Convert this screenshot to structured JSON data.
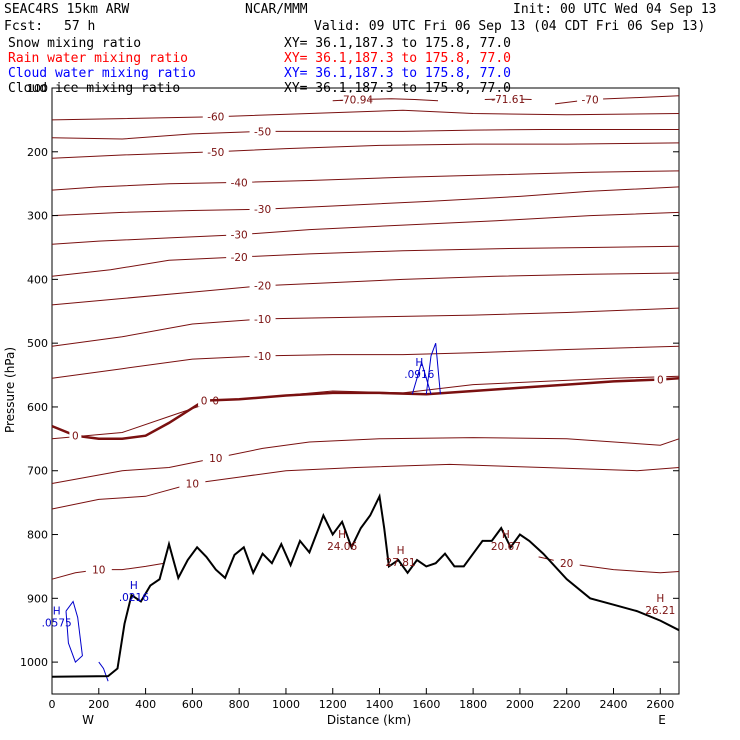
{
  "header": {
    "model": "SEAC4RS 15km ARW",
    "org": "NCAR/MMM",
    "init": "Init: 00 UTC Wed 04 Sep 13",
    "fcst_label": "Fcst:",
    "fcst_value": "57 h",
    "valid": "Valid: 09 UTC Fri 06 Sep 13 (04 CDT Fri 06 Sep 13)"
  },
  "legend": [
    {
      "label": "Snow mixing ratio",
      "xy": "XY=  36.1,187.3 to 175.8, 77.0",
      "color": "#000000"
    },
    {
      "label": "Rain water mixing ratio",
      "xy": "XY=  36.1,187.3 to 175.8, 77.0",
      "color": "#ff0000"
    },
    {
      "label": "Cloud water mixing ratio",
      "xy": "XY=  36.1,187.3 to 175.8, 77.0",
      "color": "#0000ff"
    },
    {
      "label": "Cloud ice mixing ratio",
      "xy": "XY=  36.1,187.3 to 175.8, 77.0",
      "color": "#000000"
    }
  ],
  "colors": {
    "isotherm": "#7a1010",
    "freezing": "#7a1010",
    "cloud_water": "#0000cc",
    "terrain": "#000000"
  },
  "chart_data": {
    "type": "line",
    "xlabel": "Distance (km)",
    "ylabel": "Pressure (hPa)",
    "xlim": [
      0,
      2680
    ],
    "ylim": [
      1050,
      100
    ],
    "xticks": [
      0,
      200,
      400,
      600,
      800,
      1000,
      1200,
      1400,
      1600,
      1800,
      2000,
      2200,
      2400,
      2600
    ],
    "yticks": [
      100,
      200,
      300,
      400,
      500,
      600,
      700,
      800,
      900,
      1000
    ],
    "xticklabels": [
      "0",
      "200",
      "400",
      "600",
      "800",
      "1000",
      "1200",
      "1400",
      "1600",
      "1800",
      "2000",
      "2200",
      "2400",
      "2600"
    ],
    "yticklabels": [
      "100",
      "200",
      "300",
      "400",
      "500",
      "600",
      "700",
      "800",
      "900",
      "1000"
    ],
    "endpoints": {
      "left": "W",
      "right": "E"
    },
    "terrain": {
      "x": [
        0,
        240,
        280,
        310,
        340,
        380,
        420,
        460,
        500,
        540,
        580,
        620,
        660,
        700,
        740,
        780,
        820,
        860,
        900,
        940,
        980,
        1020,
        1060,
        1100,
        1140,
        1160,
        1200,
        1240,
        1280,
        1320,
        1360,
        1400,
        1420,
        1440,
        1480,
        1520,
        1560,
        1600,
        1640,
        1680,
        1720,
        1760,
        1800,
        1840,
        1880,
        1920,
        1960,
        2000,
        2040,
        2100,
        2200,
        2300,
        2400,
        2500,
        2600,
        2680
      ],
      "p": [
        1023,
        1022,
        1010,
        940,
        895,
        905,
        880,
        870,
        815,
        868,
        840,
        820,
        835,
        855,
        868,
        832,
        820,
        860,
        830,
        845,
        815,
        848,
        810,
        828,
        790,
        770,
        800,
        780,
        820,
        790,
        770,
        740,
        790,
        850,
        840,
        860,
        840,
        850,
        845,
        830,
        850,
        850,
        830,
        810,
        810,
        790,
        820,
        800,
        810,
        830,
        870,
        900,
        910,
        920,
        935,
        950
      ]
    },
    "isotherms": [
      {
        "label": "-60",
        "x": [
          0,
          300,
          700,
          1100,
          1500,
          1800,
          2200,
          2680
        ],
        "p": [
          150,
          148,
          145,
          140,
          135,
          140,
          142,
          140
        ]
      },
      {
        "label": "-70.94",
        "x": [
          1200,
          1300,
          1450,
          1550,
          1650
        ],
        "p": [
          120,
          118,
          117,
          118,
          120
        ]
      },
      {
        "label": "-71.61",
        "x": [
          1850,
          1950,
          2050
        ],
        "p": [
          118,
          117,
          118
        ]
      },
      {
        "label": "-70",
        "x": [
          2150,
          2300,
          2500,
          2680
        ],
        "p": [
          125,
          118,
          115,
          112
        ]
      },
      {
        "label": "-50",
        "x": [
          0,
          300,
          600,
          900,
          1200,
          1500,
          1800,
          2100,
          2400,
          2680
        ],
        "p": [
          178,
          180,
          172,
          168,
          168,
          168,
          166,
          165,
          165,
          165
        ]
      },
      {
        "label": "-50",
        "x": [
          0,
          300,
          700,
          1000,
          1400,
          1800,
          2200,
          2680
        ],
        "p": [
          210,
          205,
          200,
          195,
          190,
          188,
          188,
          186
        ]
      },
      {
        "label": "-40",
        "x": [
          0,
          200,
          500,
          800,
          1100,
          1500,
          1900,
          2300,
          2680
        ],
        "p": [
          260,
          255,
          250,
          248,
          245,
          240,
          236,
          232,
          230
        ]
      },
      {
        "label": "-30",
        "x": [
          0,
          300,
          600,
          900,
          1200,
          1600,
          2000,
          2300,
          2680
        ],
        "p": [
          300,
          295,
          292,
          290,
          285,
          278,
          270,
          262,
          255
        ]
      },
      {
        "label": "-30",
        "x": [
          0,
          200,
          500,
          800,
          1100,
          1500,
          1900,
          2300,
          2680
        ],
        "p": [
          345,
          340,
          335,
          330,
          322,
          315,
          308,
          300,
          295
        ]
      },
      {
        "label": "-20",
        "x": [
          0,
          250,
          500,
          800,
          1100,
          1500,
          1900,
          2300,
          2680
        ],
        "p": [
          395,
          385,
          370,
          365,
          360,
          355,
          352,
          350,
          348
        ]
      },
      {
        "label": "-20",
        "x": [
          0,
          300,
          600,
          900,
          1200,
          1500,
          1900,
          2300,
          2680
        ],
        "p": [
          440,
          430,
          420,
          410,
          405,
          400,
          395,
          392,
          390
        ]
      },
      {
        "label": "-10",
        "x": [
          0,
          300,
          600,
          900,
          1200,
          1500,
          1800,
          2200,
          2680
        ],
        "p": [
          505,
          490,
          470,
          462,
          460,
          458,
          456,
          452,
          445
        ]
      },
      {
        "label": "-10",
        "x": [
          0,
          300,
          600,
          900,
          1200,
          1500,
          1800,
          2200,
          2680
        ],
        "p": [
          555,
          540,
          525,
          520,
          518,
          518,
          515,
          510,
          505
        ]
      },
      {
        "label": "0",
        "x": [
          0,
          300,
          500,
          700,
          900,
          1200,
          1500,
          1800,
          2100,
          2400,
          2680
        ],
        "p": [
          650,
          640,
          615,
          590,
          585,
          575,
          578,
          565,
          560,
          555,
          552
        ]
      },
      {
        "label": "10",
        "x": [
          0,
          300,
          500,
          700,
          900,
          1100,
          1400,
          1800,
          2200,
          2600,
          2680
        ],
        "p": [
          720,
          700,
          695,
          680,
          665,
          655,
          650,
          648,
          650,
          660,
          650
        ]
      },
      {
        "label": "10",
        "x": [
          0,
          200,
          400,
          600,
          800,
          1000,
          1300,
          1700,
          2100,
          2500,
          2680
        ],
        "p": [
          760,
          745,
          740,
          720,
          710,
          700,
          695,
          690,
          695,
          700,
          695
        ]
      },
      {
        "label": "10",
        "x": [
          0,
          100,
          200,
          300,
          400,
          480
        ],
        "p": [
          870,
          860,
          855,
          855,
          850,
          845
        ]
      },
      {
        "label": "20",
        "x": [
          2080,
          2200,
          2400,
          2600,
          2680
        ],
        "p": [
          835,
          845,
          855,
          860,
          858
        ]
      }
    ],
    "freezing_level": {
      "label": "0",
      "x": [
        0,
        100,
        200,
        300,
        400,
        500,
        650,
        800,
        1000,
        1200,
        1400,
        1600,
        1800,
        2000,
        2200,
        2400,
        2600,
        2680
      ],
      "p": [
        630,
        645,
        650,
        650,
        645,
        625,
        590,
        588,
        582,
        578,
        578,
        580,
        575,
        570,
        565,
        560,
        557,
        555
      ]
    },
    "extrema": [
      {
        "kind": "H",
        "value": "24.06",
        "x": 1240,
        "p": 815
      },
      {
        "kind": "H",
        "value": "27.81",
        "x": 1490,
        "p": 840
      },
      {
        "kind": "H",
        "value": "20.67",
        "x": 1940,
        "p": 815
      },
      {
        "kind": "H",
        "value": "26.21",
        "x": 2600,
        "p": 915
      },
      {
        "kind": "H",
        "value": ".0916",
        "x": 1570,
        "p": 545
      },
      {
        "kind": "H",
        "value": ".0216",
        "x": 350,
        "p": 895
      },
      {
        "kind": "H",
        "value": ".0575",
        "x": 20,
        "p": 935
      }
    ],
    "cloud_water": [
      {
        "x": [
          1540,
          1560,
          1580,
          1600,
          1620
        ],
        "p": [
          580,
          555,
          530,
          555,
          580
        ]
      },
      {
        "x": [
          1600,
          1620,
          1640,
          1660
        ],
        "p": [
          580,
          520,
          500,
          580
        ]
      },
      {
        "x": [
          60,
          90,
          110,
          130,
          100,
          70,
          60
        ],
        "p": [
          920,
          905,
          930,
          990,
          1000,
          970,
          920
        ]
      },
      {
        "x": [
          200,
          220,
          240
        ],
        "p": [
          1000,
          1010,
          1030
        ]
      }
    ]
  }
}
